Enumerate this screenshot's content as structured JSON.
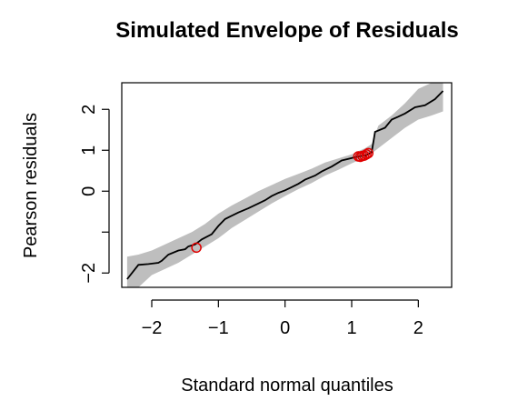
{
  "chart_data": {
    "type": "line",
    "title": "Simulated Envelope of Residuals",
    "xlabel": "Standard normal quantiles",
    "ylabel": "Pearson residuals",
    "xlim": [
      -2.45,
      2.5
    ],
    "ylim": [
      -2.35,
      2.65
    ],
    "x_ticks": [
      -2,
      -1,
      0,
      1,
      2
    ],
    "x_tick_labels": [
      "−2",
      "−1",
      "0",
      "1",
      "2"
    ],
    "y_ticks": [
      -2,
      -1,
      0,
      1,
      2
    ],
    "y_tick_labels": [
      "−2",
      "",
      "0",
      "1",
      "2"
    ],
    "grid": false,
    "legend": "none",
    "colors": {
      "line": "#000000",
      "envelope": "#bebebe",
      "outlier": "#e00000"
    },
    "envelope": {
      "x": [
        -2.37,
        -2.2,
        -2.0,
        -1.8,
        -1.6,
        -1.4,
        -1.2,
        -1.0,
        -0.8,
        -0.6,
        -0.4,
        -0.2,
        0.0,
        0.2,
        0.4,
        0.6,
        0.8,
        1.0,
        1.1,
        1.2,
        1.3,
        1.4,
        1.6,
        1.8,
        2.0,
        2.2,
        2.37
      ],
      "lower": [
        -2.35,
        -2.35,
        -2.05,
        -1.9,
        -1.75,
        -1.55,
        -1.35,
        -1.15,
        -0.9,
        -0.7,
        -0.5,
        -0.3,
        -0.12,
        0.05,
        0.2,
        0.38,
        0.52,
        0.68,
        0.75,
        0.85,
        0.92,
        1.05,
        1.3,
        1.55,
        1.75,
        1.85,
        1.95
      ],
      "upper": [
        -1.6,
        -1.55,
        -1.45,
        -1.3,
        -1.15,
        -1.0,
        -0.8,
        -0.55,
        -0.35,
        -0.18,
        0.0,
        0.15,
        0.3,
        0.42,
        0.55,
        0.7,
        0.8,
        0.9,
        0.98,
        1.05,
        1.15,
        1.6,
        1.85,
        2.15,
        2.5,
        2.65,
        2.65
      ]
    },
    "series": [
      {
        "x": [
          -2.37,
          -2.2,
          -2.05,
          -1.9,
          -1.85,
          -1.75,
          -1.6,
          -1.5,
          -1.45,
          -1.35,
          -1.25,
          -1.1,
          -1.0,
          -0.9,
          -0.7,
          -0.55,
          -0.4,
          -0.3,
          -0.2,
          -0.1,
          0.0,
          0.1,
          0.2,
          0.3,
          0.45,
          0.55,
          0.7,
          0.85,
          1.05,
          1.15,
          1.22,
          1.3,
          1.35,
          1.5,
          1.6,
          1.7,
          1.8,
          1.95,
          2.1,
          2.25,
          2.37
        ],
        "y": [
          -2.15,
          -1.8,
          -1.78,
          -1.75,
          -1.7,
          -1.55,
          -1.45,
          -1.42,
          -1.35,
          -1.3,
          -1.18,
          -1.05,
          -0.85,
          -0.68,
          -0.52,
          -0.42,
          -0.3,
          -0.22,
          -0.12,
          -0.04,
          0.02,
          0.1,
          0.18,
          0.28,
          0.38,
          0.48,
          0.6,
          0.75,
          0.83,
          0.86,
          0.88,
          0.95,
          1.45,
          1.55,
          1.75,
          1.82,
          1.9,
          2.05,
          2.1,
          2.25,
          2.45
        ]
      }
    ],
    "outliers": {
      "x": [
        -1.33,
        1.1,
        1.13,
        1.16,
        1.19,
        1.22,
        1.25
      ],
      "y": [
        -1.38,
        0.85,
        0.84,
        0.86,
        0.87,
        0.9,
        0.93
      ]
    }
  }
}
